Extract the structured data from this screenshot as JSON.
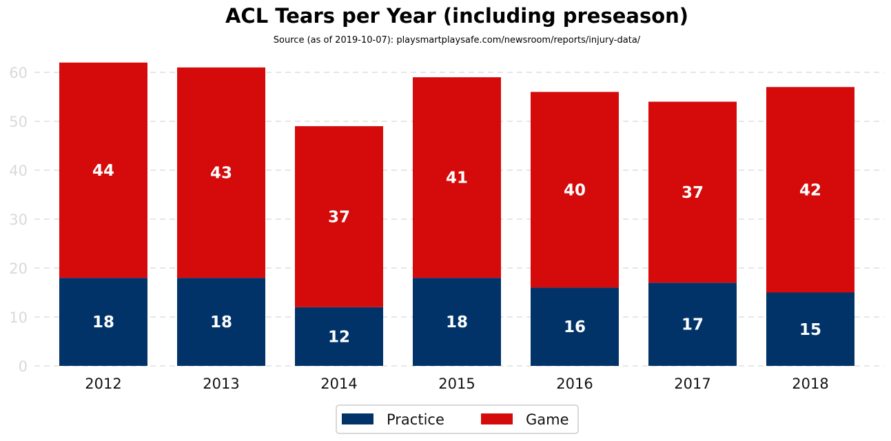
{
  "chart_data": {
    "type": "bar",
    "stacked": true,
    "title": "ACL Tears per Year (including preseason)",
    "subtitle": "Source (as of 2019-10-07): playsmartplaysafe.com/newsroom/reports/injury-data/",
    "categories": [
      "2012",
      "2013",
      "2014",
      "2015",
      "2016",
      "2017",
      "2018"
    ],
    "series": [
      {
        "name": "Practice",
        "color": "#013369",
        "values": [
          18,
          18,
          12,
          18,
          16,
          17,
          15
        ]
      },
      {
        "name": "Game",
        "color": "#d50a0a",
        "values": [
          44,
          43,
          37,
          41,
          40,
          37,
          42
        ]
      }
    ],
    "ylim": [
      0,
      63
    ],
    "yticks": [
      0,
      10,
      20,
      30,
      40,
      50,
      60
    ],
    "grid": true,
    "legend_position": "bottom"
  }
}
